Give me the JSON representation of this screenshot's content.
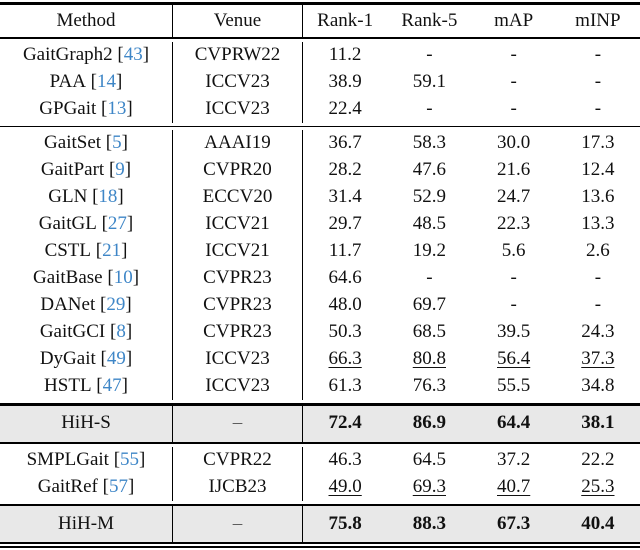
{
  "table": {
    "columns": [
      "Method",
      "Venue",
      "Rank-1",
      "Rank-5",
      "mAP",
      "mINP"
    ],
    "colors": {
      "citation": "#3e86c7",
      "highlight_bg": "#e8e8e8",
      "rule": "#000000"
    },
    "sections": [
      {
        "id": "pose-based",
        "highlight": false,
        "rows": [
          {
            "method": "GaitGraph2",
            "cite": "43",
            "venue": "CVPRW22",
            "values": [
              "11.2",
              "-",
              "-",
              "-"
            ]
          },
          {
            "method": "PAA",
            "cite": "14",
            "venue": "ICCV23",
            "values": [
              "38.9",
              "59.1",
              "-",
              "-"
            ]
          },
          {
            "method": "GPGait",
            "cite": "13",
            "venue": "ICCV23",
            "values": [
              "22.4",
              "-",
              "-",
              "-"
            ]
          }
        ]
      },
      {
        "id": "silhouette-based",
        "highlight": false,
        "rows": [
          {
            "method": "GaitSet",
            "cite": "5",
            "venue": "AAAI19",
            "values": [
              "36.7",
              "58.3",
              "30.0",
              "17.3"
            ]
          },
          {
            "method": "GaitPart",
            "cite": "9",
            "venue": "CVPR20",
            "values": [
              "28.2",
              "47.6",
              "21.6",
              "12.4"
            ]
          },
          {
            "method": "GLN",
            "cite": "18",
            "venue": "ECCV20",
            "values": [
              "31.4",
              "52.9",
              "24.7",
              "13.6"
            ]
          },
          {
            "method": "GaitGL",
            "cite": "27",
            "venue": "ICCV21",
            "values": [
              "29.7",
              "48.5",
              "22.3",
              "13.3"
            ]
          },
          {
            "method": "CSTL",
            "cite": "21",
            "venue": "ICCV21",
            "values": [
              "11.7",
              "19.2",
              "5.6",
              "2.6"
            ]
          },
          {
            "method": "GaitBase",
            "cite": "10",
            "venue": "CVPR23",
            "values": [
              "64.6",
              "-",
              "-",
              "-"
            ]
          },
          {
            "method": "DANet",
            "cite": "29",
            "venue": "CVPR23",
            "values": [
              "48.0",
              "69.7",
              "-",
              "-"
            ]
          },
          {
            "method": "GaitGCI",
            "cite": "8",
            "venue": "CVPR23",
            "values": [
              "50.3",
              "68.5",
              "39.5",
              "24.3"
            ]
          },
          {
            "method": "DyGait",
            "cite": "49",
            "venue": "ICCV23",
            "values": [
              "66.3",
              "80.8",
              "56.4",
              "37.3"
            ],
            "underline": true
          },
          {
            "method": "HSTL",
            "cite": "47",
            "venue": "ICCV23",
            "values": [
              "61.3",
              "76.3",
              "55.5",
              "34.8"
            ]
          }
        ]
      },
      {
        "id": "hih-s",
        "highlight": true,
        "rows": [
          {
            "method": "HiH-S",
            "venue": "–",
            "venue_dash": true,
            "values": [
              "72.4",
              "86.9",
              "64.4",
              "38.1"
            ],
            "bold": true
          }
        ]
      },
      {
        "id": "multimodal",
        "highlight": false,
        "rows": [
          {
            "method": "SMPLGait",
            "cite": "55",
            "venue": "CVPR22",
            "values": [
              "46.3",
              "64.5",
              "37.2",
              "22.2"
            ]
          },
          {
            "method": "GaitRef",
            "cite": "57",
            "venue": "IJCB23",
            "values": [
              "49.0",
              "69.3",
              "40.7",
              "25.3"
            ],
            "underline": true
          }
        ]
      },
      {
        "id": "hih-m",
        "highlight": true,
        "rows": [
          {
            "method": "HiH-M",
            "venue": "–",
            "venue_dash": true,
            "values": [
              "75.8",
              "88.3",
              "67.3",
              "40.4"
            ],
            "bold": true
          }
        ]
      }
    ]
  }
}
